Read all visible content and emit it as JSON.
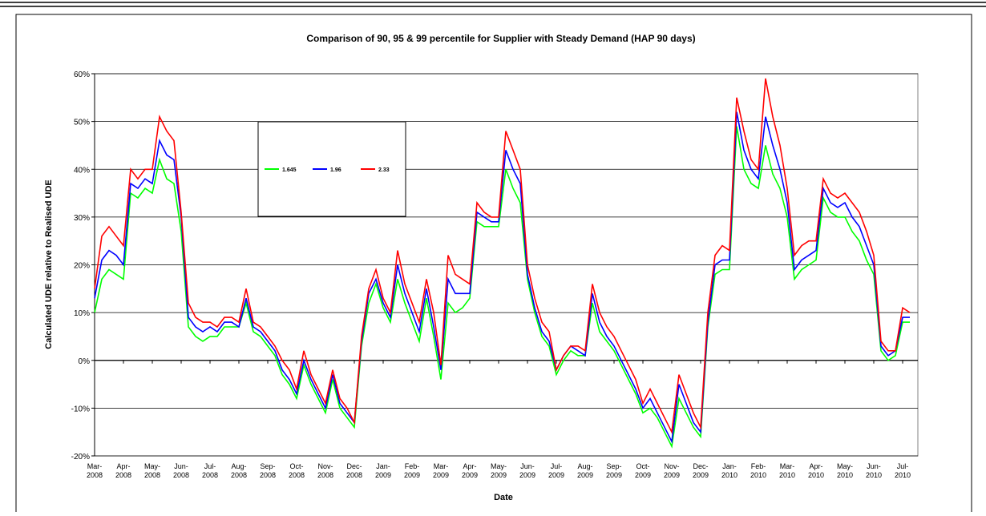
{
  "chart_data": {
    "type": "line",
    "title": "Comparison of 90, 95 & 99 percentile for Supplier with Steady Demand (HAP 90 days)",
    "x_label": "Date",
    "y_label": "Calculated UDE relative to Realised UDE",
    "categories": [
      "Mar-2008",
      null,
      null,
      null,
      "Apr-2008",
      null,
      null,
      null,
      "May-2008",
      null,
      null,
      null,
      "Jun-2008",
      null,
      null,
      null,
      "Jul-2008",
      null,
      null,
      null,
      "Aug-2008",
      null,
      null,
      null,
      "Sep-2008",
      null,
      null,
      null,
      "Oct-2008",
      null,
      null,
      null,
      "Nov-2008",
      null,
      null,
      null,
      "Dec-2008",
      null,
      null,
      null,
      "Jan-2009",
      null,
      null,
      null,
      "Feb-2009",
      null,
      null,
      null,
      "Mar-2009",
      null,
      null,
      null,
      "Apr-2009",
      null,
      null,
      null,
      "May-2009",
      null,
      null,
      null,
      "Jun-2009",
      null,
      null,
      null,
      "Jul-2009",
      null,
      null,
      null,
      "Aug-2009",
      null,
      null,
      null,
      "Sep-2009",
      null,
      null,
      null,
      "Oct-2009",
      null,
      null,
      null,
      "Nov-2009",
      null,
      null,
      null,
      "Dec-2009",
      null,
      null,
      null,
      "Jan-2010",
      null,
      null,
      null,
      "Feb-2010",
      null,
      null,
      null,
      "Mar-2010",
      null,
      null,
      null,
      "Apr-2010",
      null,
      null,
      null,
      "May-2010",
      null,
      null,
      null,
      "Jun-2010",
      null,
      null,
      null,
      "Jul-2010",
      null
    ],
    "series": [
      {
        "name": "1.645",
        "color": "#00ff00",
        "values": [
          10,
          17,
          19,
          18,
          17,
          35,
          34,
          36,
          35,
          42,
          38,
          37,
          27,
          7,
          5,
          4,
          5,
          5,
          7,
          7,
          7,
          12,
          6,
          5,
          3,
          1,
          -3,
          -5,
          -8,
          -1,
          -5,
          -8,
          -11,
          -4,
          -10,
          -12,
          -14,
          3,
          12,
          16,
          11,
          8,
          17,
          12,
          8,
          4,
          13,
          5,
          -4,
          12,
          10,
          11,
          13,
          29,
          28,
          28,
          28,
          40,
          36,
          33,
          17,
          10,
          5,
          3,
          -3,
          0,
          2,
          1,
          1,
          12,
          6,
          4,
          2,
          -1,
          -4,
          -7,
          -11,
          -10,
          -12,
          -15,
          -18,
          -8,
          -11,
          -14,
          -16,
          7,
          18,
          19,
          19,
          49,
          40,
          37,
          36,
          45,
          39,
          36,
          30,
          17,
          19,
          20,
          21,
          34,
          31,
          30,
          30,
          27,
          25,
          21,
          18,
          2,
          0,
          1,
          8,
          8
        ]
      },
      {
        "name": "1.96",
        "color": "#0000ff",
        "values": [
          13,
          21,
          23,
          22,
          20,
          37,
          36,
          38,
          37,
          46,
          43,
          42,
          30,
          9,
          7,
          6,
          7,
          6,
          8,
          8,
          7,
          13,
          7,
          6,
          4,
          2,
          -2,
          -4,
          -7,
          0,
          -4,
          -7,
          -10,
          -3,
          -9,
          -11,
          -13,
          4,
          14,
          17,
          12,
          9,
          20,
          14,
          10,
          6,
          15,
          7,
          -2,
          17,
          14,
          14,
          14,
          31,
          30,
          29,
          29,
          44,
          40,
          37,
          18,
          11,
          6,
          4,
          -2,
          1,
          3,
          2,
          1,
          14,
          8,
          5,
          3,
          0,
          -3,
          -6,
          -10,
          -8,
          -11,
          -14,
          -17,
          -5,
          -9,
          -13,
          -15,
          8,
          20,
          21,
          21,
          52,
          44,
          40,
          38,
          51,
          45,
          40,
          33,
          19,
          21,
          22,
          23,
          36,
          33,
          32,
          33,
          30,
          28,
          24,
          20,
          3,
          1,
          2,
          9,
          9
        ]
      },
      {
        "name": "2.33",
        "color": "#ff0000",
        "values": [
          15,
          26,
          28,
          26,
          24,
          40,
          38,
          40,
          40,
          51,
          48,
          46,
          31,
          12,
          9,
          8,
          8,
          7,
          9,
          9,
          8,
          15,
          8,
          7,
          5,
          3,
          0,
          -2,
          -6,
          2,
          -3,
          -6,
          -9,
          -2,
          -8,
          -10,
          -13,
          5,
          15,
          19,
          13,
          10,
          23,
          16,
          12,
          8,
          17,
          10,
          -1,
          22,
          18,
          17,
          16,
          33,
          31,
          30,
          30,
          48,
          44,
          40,
          20,
          13,
          8,
          6,
          -2,
          1,
          3,
          3,
          2,
          16,
          10,
          7,
          5,
          2,
          -1,
          -4,
          -9,
          -6,
          -9,
          -12,
          -15,
          -3,
          -7,
          -11,
          -14,
          10,
          22,
          24,
          23,
          55,
          48,
          42,
          40,
          59,
          51,
          45,
          36,
          22,
          24,
          25,
          25,
          38,
          35,
          34,
          35,
          33,
          31,
          27,
          22,
          4,
          2,
          2,
          11,
          10
        ]
      }
    ],
    "ylim": [
      -20,
      60
    ],
    "yticks": [
      {
        "value": -20,
        "label": "-20%"
      },
      {
        "value": -10,
        "label": "-10%"
      },
      {
        "value": 0,
        "label": "0%"
      },
      {
        "value": 10,
        "label": "10%"
      },
      {
        "value": 20,
        "label": "20%"
      },
      {
        "value": 30,
        "label": "30%"
      },
      {
        "value": 40,
        "label": "40%"
      },
      {
        "value": 50,
        "label": "50%"
      },
      {
        "value": 60,
        "label": "60%"
      }
    ],
    "grid": true
  }
}
